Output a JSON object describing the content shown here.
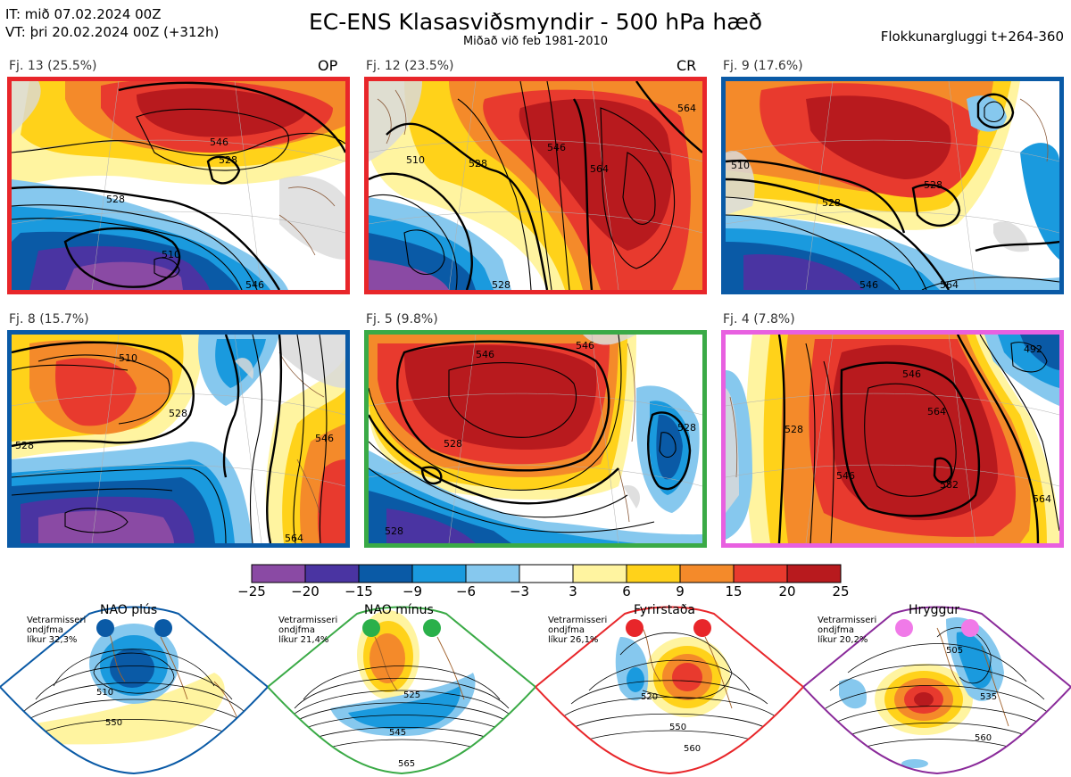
{
  "header": {
    "it_line": "IT: mið 07.02.2024 00Z",
    "vt_line": "VT: þri 20.02.2024 00Z  (+312h)",
    "title": "EC-ENS Klasasviðsmyndir - 500 hPa hæð",
    "subtitle": "Miðað við feb 1981-2010",
    "window": "Flokkunargluggi t+264-360"
  },
  "panels": [
    {
      "label": "Fj. 13 (25.5%)",
      "tag": "OP",
      "border": "#e8262a",
      "contours": [
        "546",
        "528",
        "510",
        "528",
        "546"
      ]
    },
    {
      "label": "Fj. 12 (23.5%)",
      "tag": "CR",
      "border": "#e8262a",
      "contours": [
        "546",
        "528",
        "564",
        "510",
        "528",
        "564"
      ]
    },
    {
      "label": "Fj. 9 (17.6%)",
      "tag": "",
      "border": "#0a5aa6",
      "contours": [
        "510",
        "528",
        "546",
        "564",
        "528"
      ]
    },
    {
      "label": "Fj. 8 (15.7%)",
      "tag": "",
      "border": "#0a5aa6",
      "contours": [
        "510",
        "528",
        "528",
        "546",
        "564"
      ]
    },
    {
      "label": "Fj. 5 (9.8%)",
      "tag": "",
      "border": "#3aaa46",
      "contours": [
        "546",
        "528",
        "546",
        "528",
        "528"
      ]
    },
    {
      "label": "Fj. 4 (7.8%)",
      "tag": "",
      "border": "#e860e0",
      "contours": [
        "546",
        "564",
        "582",
        "528",
        "492",
        "546",
        "564"
      ]
    }
  ],
  "colorbar": {
    "colors": [
      "#8a4aa4",
      "#4a34a2",
      "#0a5aa6",
      "#1a9ade",
      "#86c8ee",
      "#ffffff",
      "#fff4a0",
      "#ffd21a",
      "#f48a2a",
      "#e83a2e",
      "#b81a1e"
    ],
    "labels": [
      "−25",
      "−20",
      "−15",
      "−9",
      "−6",
      "−3",
      "3",
      "6",
      "9",
      "15",
      "20",
      "25"
    ]
  },
  "regimes": [
    {
      "name": "NAO plús",
      "note": "Vetrarmisseri\nondjfma\nlíkur 32,3%",
      "border": "#0a5aa6",
      "dot": "#0a5aa6",
      "contours": [
        "510",
        "550"
      ]
    },
    {
      "name": "NAO mínus",
      "note": "Vetrarmisseri\nondjfma\nlíkur 21,4%",
      "border": "#3aaa46",
      "dot": "#2ab04a",
      "contours": [
        "525",
        "545",
        "565"
      ]
    },
    {
      "name": "Fyrirstaða",
      "note": "Vetrarmisseri\nondjfma\nlíkur 26,1%",
      "border": "#e8262a",
      "dot": "#e8262a",
      "contours": [
        "520",
        "550",
        "560"
      ]
    },
    {
      "name": "Hryggur",
      "note": "Vetrarmisseri\nondjfma\nlíkur 20,2%",
      "border": "#8a2a9a",
      "dot": "#f07ae8",
      "contours": [
        "505",
        "535",
        "560"
      ]
    }
  ]
}
